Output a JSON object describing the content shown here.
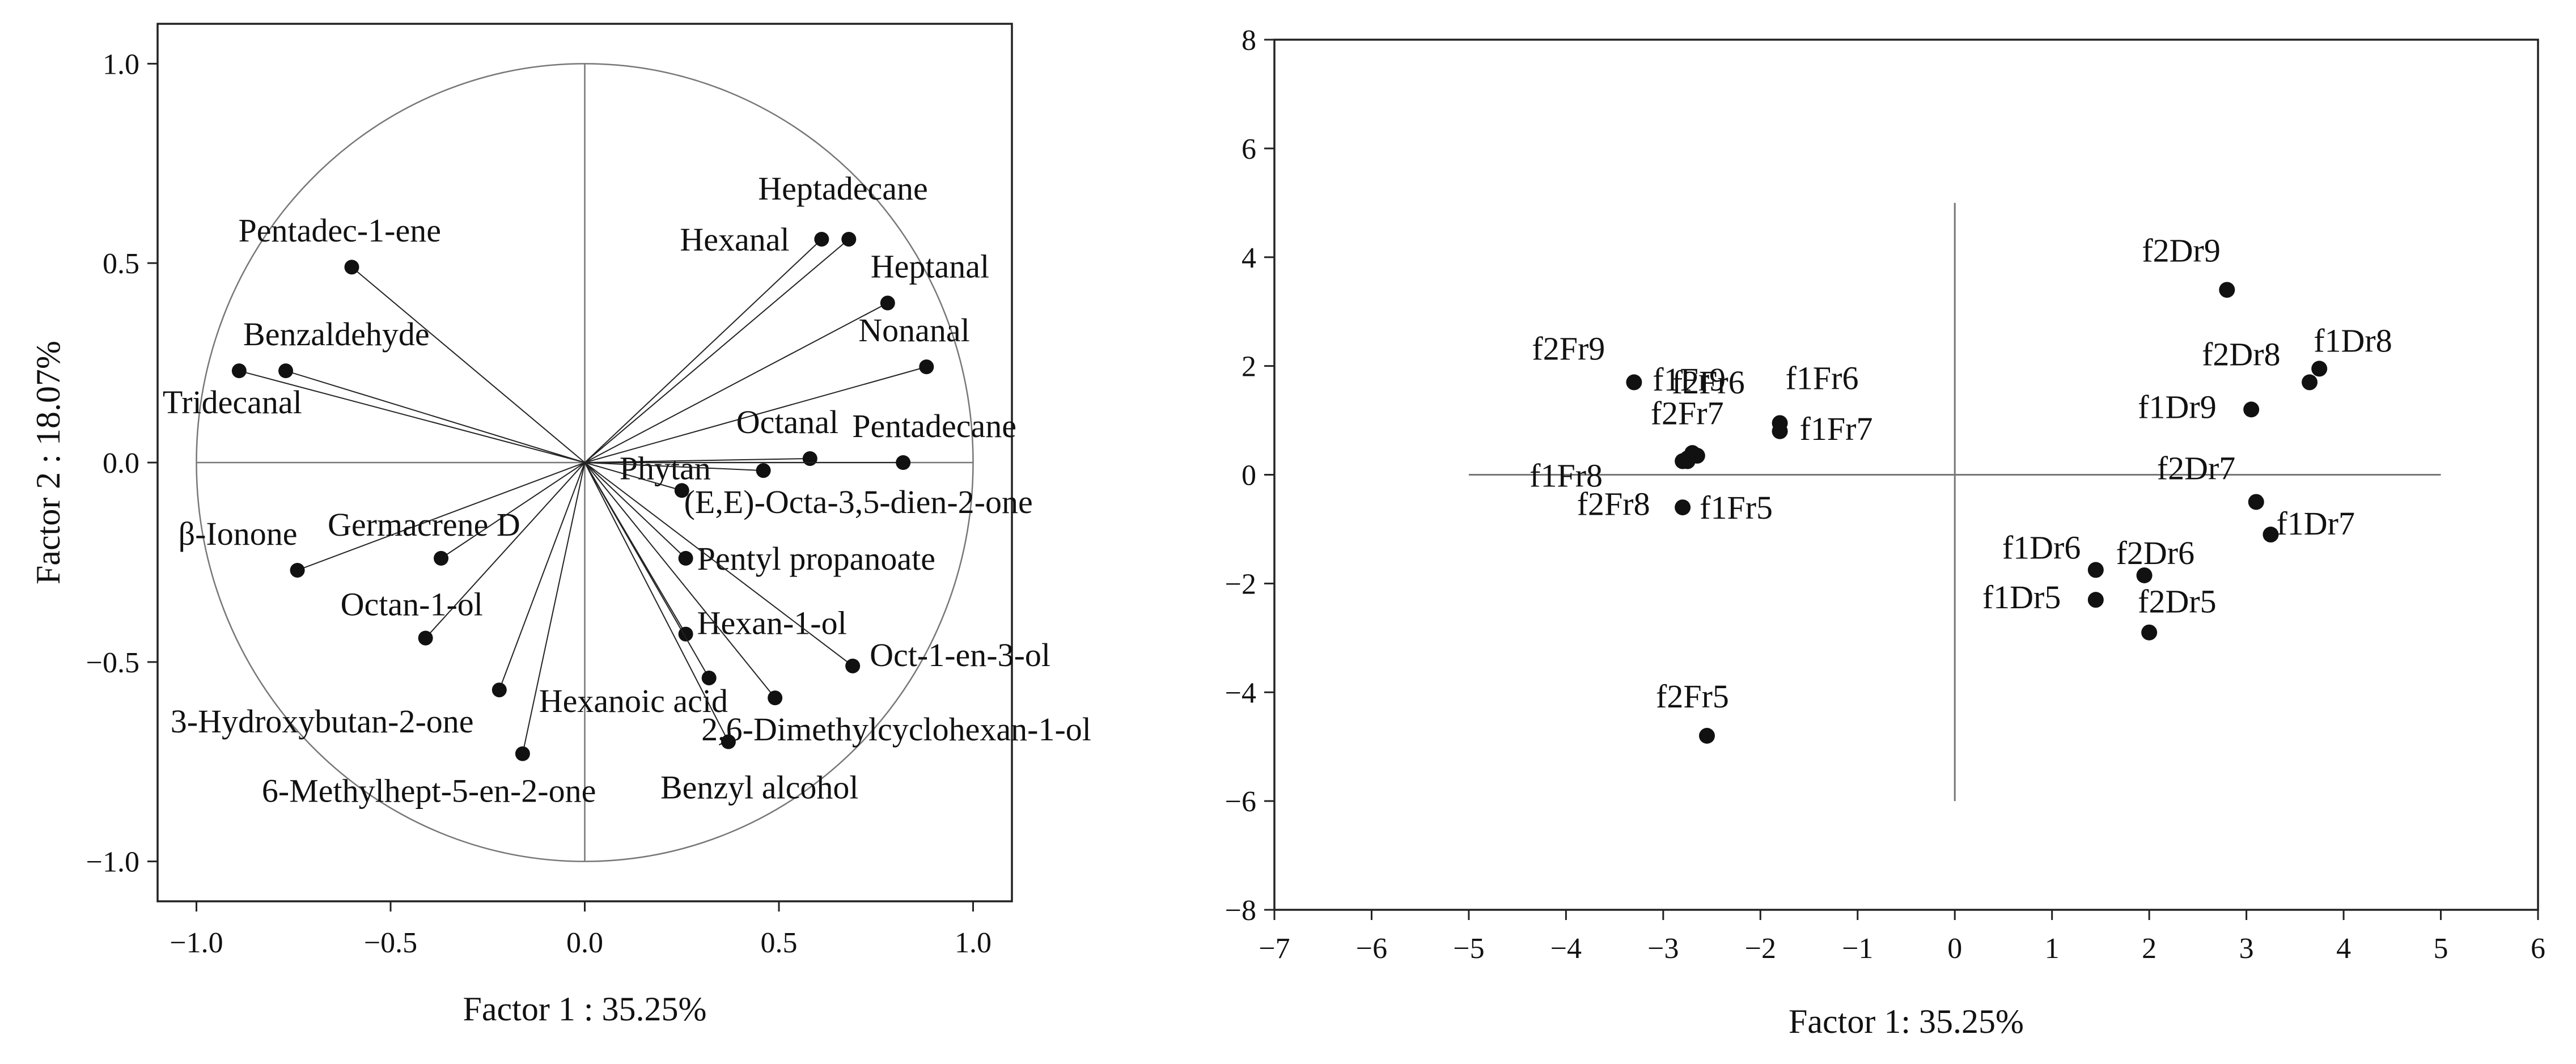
{
  "chart_data": [
    {
      "type": "scatter",
      "subtype": "loadings-correlation-circle",
      "xlabel": "Factor 1 : 35.25%",
      "ylabel": "Factor 2 : 18.07%",
      "xlim": [
        -1.1,
        1.1
      ],
      "ylim": [
        -1.1,
        1.1
      ],
      "xticks": [
        -1.0,
        -0.5,
        0.0,
        0.5,
        1.0
      ],
      "yticks": [
        -1.0,
        -0.5,
        0.0,
        0.5,
        1.0
      ],
      "tick_labels_x": [
        "−1.0",
        "−0.5",
        "0.0",
        "0.5",
        "1.0"
      ],
      "tick_labels_y": [
        "−1.0",
        "−0.5",
        "0.0",
        "0.5",
        "1.0"
      ],
      "unit_circle": true,
      "vectors_from_origin": true,
      "grid": false,
      "points": [
        {
          "label": "Heptadecane",
          "x": 0.68,
          "y": 0.56
        },
        {
          "label": "Hexanal",
          "x": 0.61,
          "y": 0.56
        },
        {
          "label": "Heptanal",
          "x": 0.78,
          "y": 0.4
        },
        {
          "label": "Nonanal",
          "x": 0.88,
          "y": 0.24
        },
        {
          "label": "Octanal",
          "x": 0.58,
          "y": 0.01
        },
        {
          "label": "Pentadecane",
          "x": 0.82,
          "y": 0.0
        },
        {
          "label": "Phytan",
          "x": 0.25,
          "y": -0.07
        },
        {
          "label": "(E,E)-Octa-3,5-dien-2-one",
          "x": 0.46,
          "y": -0.02
        },
        {
          "label": "Pentyl propanoate",
          "x": 0.26,
          "y": -0.24
        },
        {
          "label": "Hexan-1-ol",
          "x": 0.26,
          "y": -0.43
        },
        {
          "label": "Oct-1-en-3-ol",
          "x": 0.69,
          "y": -0.51
        },
        {
          "label": "Hexanoic acid",
          "x": 0.32,
          "y": -0.54
        },
        {
          "label": "2,6-Dimethylcyclohexan-1-ol",
          "x": 0.49,
          "y": -0.59
        },
        {
          "label": "Benzyl alcohol",
          "x": 0.37,
          "y": -0.7
        },
        {
          "label": "Pentadec-1-ene",
          "x": -0.6,
          "y": 0.49
        },
        {
          "label": "Benzaldehyde",
          "x": -0.77,
          "y": 0.23
        },
        {
          "label": "Tridecanal",
          "x": -0.89,
          "y": 0.23
        },
        {
          "label": "β-Ionone",
          "x": -0.74,
          "y": -0.27
        },
        {
          "label": "Germacrene D",
          "x": -0.37,
          "y": -0.24
        },
        {
          "label": "Octan-1-ol",
          "x": -0.41,
          "y": -0.44
        },
        {
          "label": "3-Hydroxybutan-2-one",
          "x": -0.22,
          "y": -0.57
        },
        {
          "label": "6-Methylhept-5-en-2-one",
          "x": -0.16,
          "y": -0.73
        }
      ]
    },
    {
      "type": "scatter",
      "subtype": "scores",
      "xlabel": "Factor 1: 35.25%",
      "ylabel": "",
      "xlim": [
        -7,
        6
      ],
      "ylim": [
        -8,
        8
      ],
      "xticks": [
        -7,
        -6,
        -5,
        -4,
        -3,
        -2,
        -1,
        0,
        1,
        2,
        3,
        4,
        5,
        6
      ],
      "yticks": [
        -8,
        -6,
        -4,
        -2,
        0,
        2,
        4,
        6,
        8
      ],
      "tick_labels_x": [
        "−7",
        "−6",
        "−5",
        "−4",
        "−3",
        "−2",
        "−1",
        "0",
        "1",
        "2",
        "3",
        "4",
        "5",
        "6"
      ],
      "tick_labels_y": [
        "−8",
        "−6",
        "−4",
        "−2",
        "0",
        "2",
        "4",
        "6",
        "8"
      ],
      "reference_lines": {
        "horizontal": [
          -5,
          5
        ],
        "vertical": [
          -6,
          5
        ]
      },
      "grid": false,
      "points": [
        {
          "label": "f1Fr9",
          "x": -2.7,
          "y": 0.4
        },
        {
          "label": "f2Fr9",
          "x": -3.3,
          "y": 1.7
        },
        {
          "label": "f2Fr6",
          "x": -2.65,
          "y": 0.35
        },
        {
          "label": "f1Fr6",
          "x": -1.8,
          "y": 0.95
        },
        {
          "label": "f1Fr8",
          "x": -2.8,
          "y": 0.25
        },
        {
          "label": "f2Fr7",
          "x": -2.75,
          "y": 0.3
        },
        {
          "label": "f1Fr7",
          "x": -1.8,
          "y": 0.8
        },
        {
          "label": "f2Fr8",
          "x": -2.75,
          "y": 0.25
        },
        {
          "label": "f1Fr5",
          "x": -2.8,
          "y": -0.6
        },
        {
          "label": "f2Fr5",
          "x": -2.55,
          "y": -4.8
        },
        {
          "label": "f2Dr9",
          "x": 2.8,
          "y": 3.4
        },
        {
          "label": "f2Dr8",
          "x": 3.65,
          "y": 1.7
        },
        {
          "label": "f1Dr8",
          "x": 3.75,
          "y": 1.95
        },
        {
          "label": "f1Dr9",
          "x": 3.05,
          "y": 1.2
        },
        {
          "label": "f2Dr7",
          "x": 3.1,
          "y": -0.5
        },
        {
          "label": "f1Dr7",
          "x": 3.25,
          "y": -1.1
        },
        {
          "label": "f1Dr6",
          "x": 1.45,
          "y": -1.75
        },
        {
          "label": "f2Dr6",
          "x": 1.95,
          "y": -1.85
        },
        {
          "label": "f1Dr5",
          "x": 1.45,
          "y": -2.3
        },
        {
          "label": "f2Dr5",
          "x": 2.0,
          "y": -2.9
        }
      ]
    }
  ]
}
